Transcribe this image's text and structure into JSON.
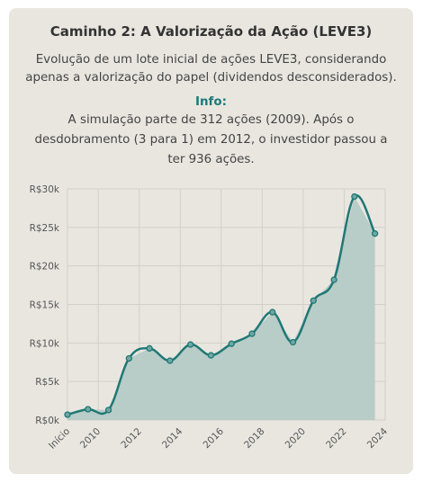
{
  "header": {
    "title": "Caminho 2: A Valorização da Ação (LEVE3)",
    "subtitle": "Evolução de um lote inicial de ações LEVE3, considerando apenas a valorização do papel (dividendos desconsiderados)."
  },
  "info": {
    "label": "Info:",
    "text": "A simulação parte de 312 ações (2009). Após o desdobramento (3 para 1) em 2012, o investidor passou a ter 936 ações."
  },
  "colors": {
    "line": "#1f7874",
    "fill": "#b8ccc8",
    "marker_fill": "#6fa6a3",
    "grid": "#d2cfc9"
  },
  "chart_data": {
    "type": "area",
    "x_tick_labels": [
      "Início",
      "2010",
      "2012",
      "2014",
      "2016",
      "2018",
      "2020",
      "2022",
      "2024"
    ],
    "x_tick_values": [
      2008.5,
      2010,
      2012,
      2014,
      2016,
      2018,
      2020,
      2022,
      2024
    ],
    "xlim": [
      2008.5,
      2024
    ],
    "ylim": [
      0,
      30000
    ],
    "y_tick_values": [
      0,
      5000,
      10000,
      15000,
      20000,
      25000,
      30000
    ],
    "y_tick_labels": [
      "R$0k",
      "R$5k",
      "R$10k",
      "R$15k",
      "R$20k",
      "R$25k",
      "R$30k"
    ],
    "grid": true,
    "legend": "none",
    "series": [
      {
        "x": [
          2008.5,
          2009.5,
          2010.5,
          2011.5,
          2012.5,
          2013.5,
          2014.5,
          2015.5,
          2016.5,
          2017.5,
          2018.5,
          2019.5,
          2020.5,
          2021.5,
          2022.5,
          2023.5
        ],
        "values": [
          700,
          1400,
          1300,
          8000,
          9300,
          7700,
          9800,
          8400,
          9900,
          11200,
          14000,
          10100,
          15500,
          18200,
          29000,
          24200
        ]
      }
    ]
  }
}
